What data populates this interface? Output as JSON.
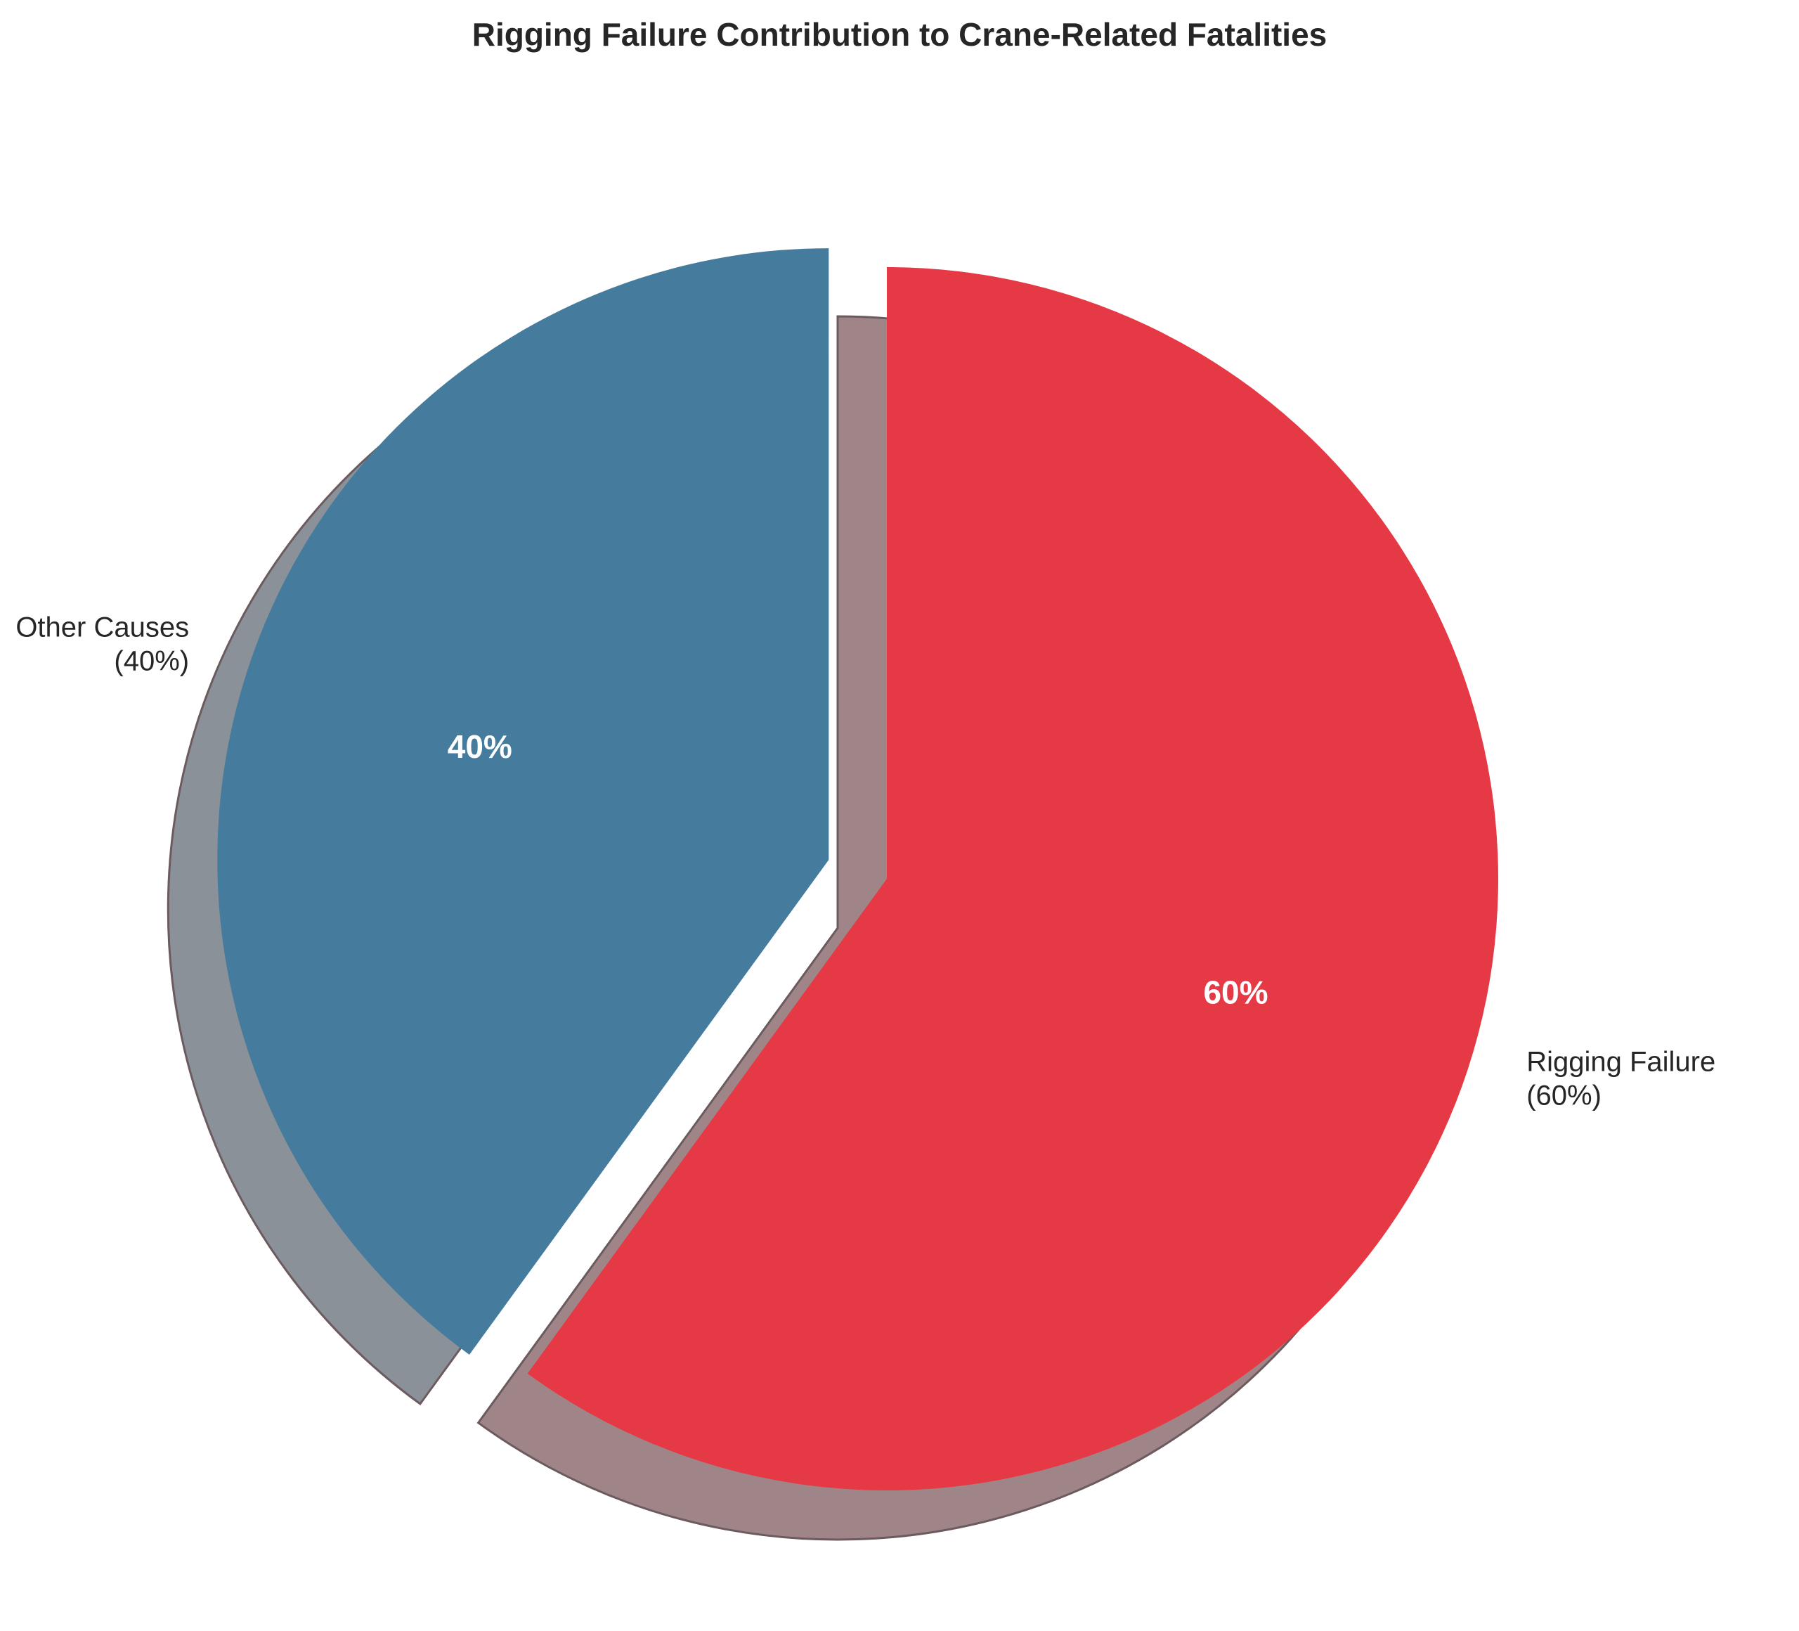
{
  "chart_data": {
    "type": "pie",
    "title": "Rigging Failure Contribution to Crane-Related Fatalities",
    "slices": [
      {
        "label": "Rigging Failure",
        "label_detail": "(60%)",
        "value": 60,
        "pct_text": "60%",
        "color": "#e63946",
        "exploded": false
      },
      {
        "label": "Other Causes",
        "label_detail": "(40%)",
        "value": 40,
        "pct_text": "40%",
        "color": "#457b9d",
        "exploded": true
      }
    ],
    "start_angle_deg": 90,
    "direction": "clockwise",
    "shadow": true,
    "legend": "none"
  }
}
